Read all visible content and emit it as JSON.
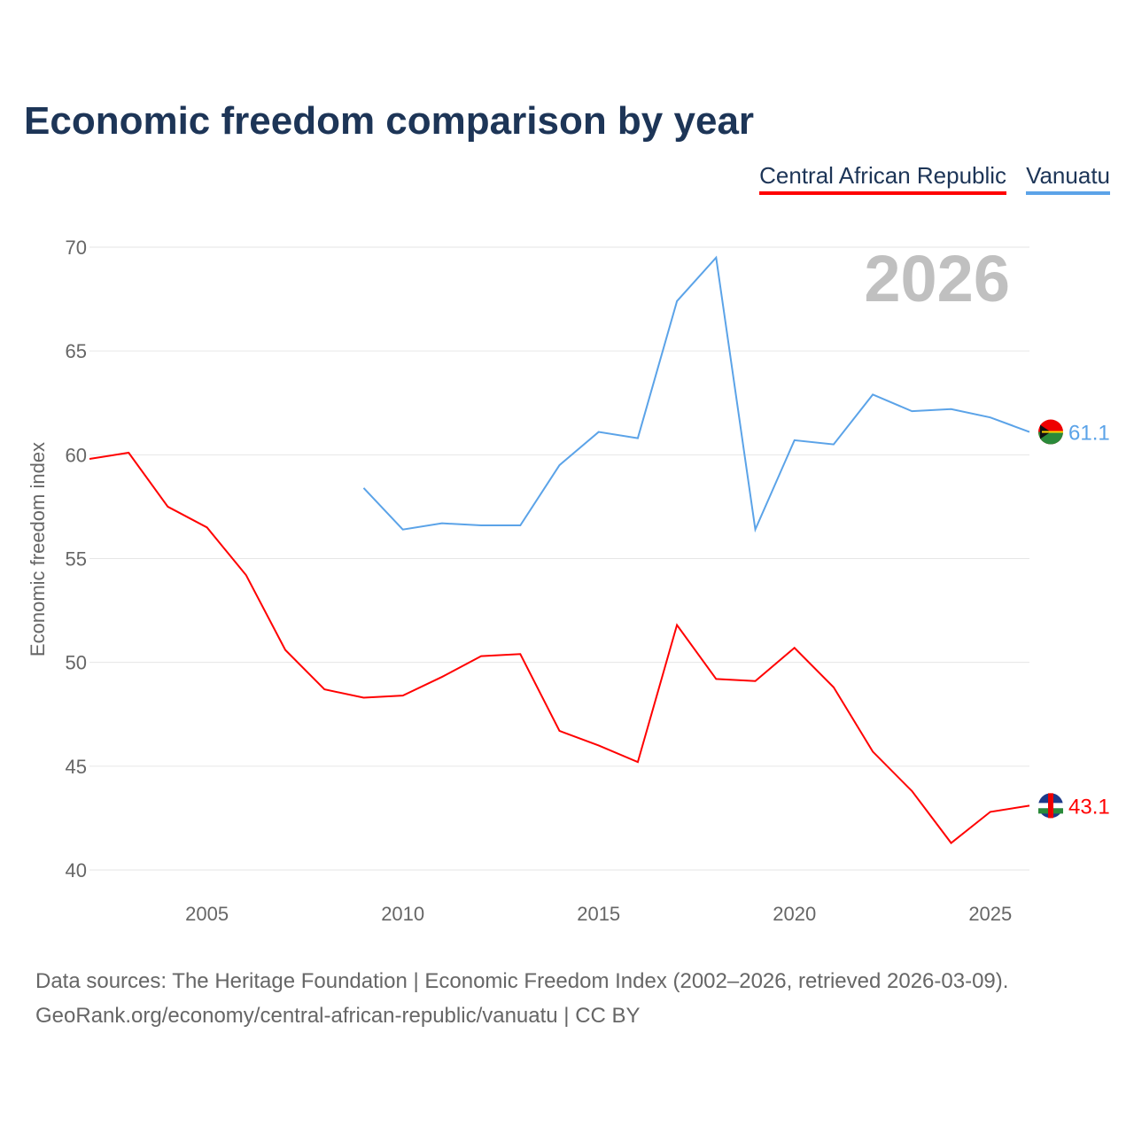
{
  "title": "Economic freedom comparison by year",
  "year_watermark": "2026",
  "sources": {
    "line1": "Data sources: The Heritage Foundation | Economic Freedom Index (2002–2026, retrieved 2026-03-09).",
    "line2": "GeoRank.org/economy/central-african-republic/vanuatu | CC BY"
  },
  "chart_data": {
    "type": "line",
    "title": "Economic freedom comparison by year",
    "ylabel": "Economic freedom index",
    "xlabel": "",
    "xlim": [
      2002,
      2026
    ],
    "ylim": [
      40,
      70
    ],
    "xticks": [
      2005,
      2010,
      2015,
      2020,
      2025
    ],
    "yticks": [
      40,
      45,
      50,
      55,
      60,
      65,
      70
    ],
    "grid": true,
    "legend_position": "top-right",
    "series": [
      {
        "name": "Central African Republic",
        "color": "#ff0000",
        "end_label": "43.1",
        "x": [
          2002,
          2003,
          2004,
          2005,
          2006,
          2007,
          2008,
          2009,
          2010,
          2011,
          2012,
          2013,
          2014,
          2015,
          2016,
          2017,
          2018,
          2019,
          2020,
          2021,
          2022,
          2023,
          2024,
          2025,
          2026
        ],
        "y": [
          59.8,
          60.1,
          57.5,
          56.5,
          54.2,
          50.6,
          48.7,
          48.3,
          48.4,
          49.3,
          50.3,
          50.4,
          46.7,
          46.0,
          45.2,
          51.8,
          49.2,
          49.1,
          50.7,
          48.8,
          45.7,
          43.8,
          41.3,
          42.8,
          43.1
        ]
      },
      {
        "name": "Vanuatu",
        "color": "#5ba3e8",
        "end_label": "61.1",
        "x": [
          2009,
          2010,
          2011,
          2012,
          2013,
          2014,
          2015,
          2016,
          2017,
          2018,
          2019,
          2020,
          2021,
          2022,
          2023,
          2024,
          2025,
          2026
        ],
        "y": [
          58.4,
          56.4,
          56.7,
          56.6,
          56.6,
          59.5,
          61.1,
          60.8,
          67.4,
          69.5,
          56.4,
          60.7,
          60.5,
          62.9,
          62.1,
          62.2,
          61.8,
          61.1
        ]
      }
    ]
  }
}
